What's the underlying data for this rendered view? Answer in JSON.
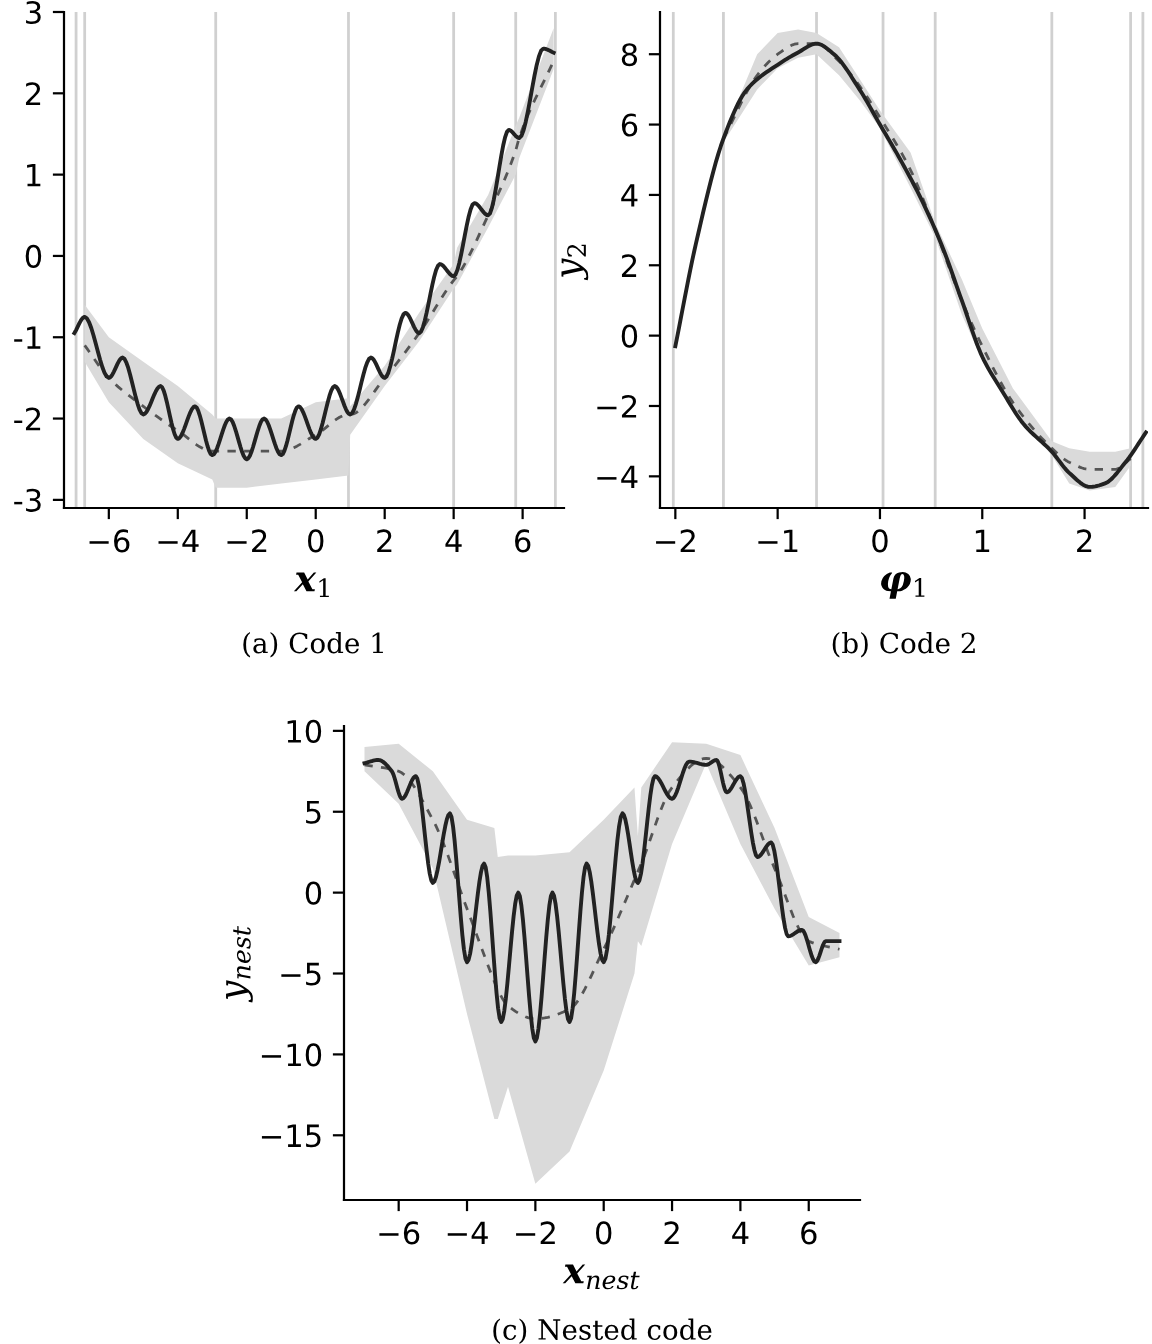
{
  "chart_data": [
    {
      "type": "line",
      "title": "(a) Code 1",
      "xlabel": "x$_{1}$",
      "xlim": [
        -7.3,
        7.2
      ],
      "ylim": [
        -3.1,
        3.0
      ],
      "xticks": [
        {
          "value": -6,
          "label": "−6"
        },
        {
          "value": -4,
          "label": "−4"
        },
        {
          "value": -2,
          "label": "−2"
        },
        0,
        2,
        4,
        6
      ],
      "yticks": [
        -3,
        -2,
        -1,
        0,
        1,
        2,
        3
      ],
      "ref_lines": [
        {
          "axis": "x",
          "value": -6.95,
          "color": "#d0d0d0"
        },
        {
          "axis": "x",
          "value": -6.7,
          "color": "#d0d0d0"
        },
        {
          "axis": "x",
          "value": -2.9,
          "color": "#d0d0d0"
        },
        {
          "axis": "x",
          "value": 0.95,
          "color": "#d0d0d0"
        },
        {
          "axis": "x",
          "value": 4.0,
          "color": "#d0d0d0"
        },
        {
          "axis": "x",
          "value": 5.8,
          "color": "#d0d0d0"
        },
        {
          "axis": "x",
          "value": 6.95,
          "color": "#d0d0d0"
        }
      ],
      "series": [
        {
          "color": "#555555",
          "line_style": "dashed",
          "x": [
            -6.7,
            -6.0,
            -5.0,
            -4.0,
            -3.0,
            -2.9,
            -2.0,
            -1.0,
            0.0,
            0.95,
            1.0,
            2.0,
            3.0,
            4.0,
            4.1,
            5.0,
            5.8,
            5.9,
            6.9
          ],
          "values": [
            -1.1,
            -1.5,
            -1.85,
            -2.15,
            -2.4,
            -2.4,
            -2.4,
            -2.4,
            -2.2,
            -1.95,
            -1.95,
            -1.5,
            -0.95,
            -0.3,
            -0.25,
            0.5,
            1.3,
            1.45,
            2.4
          ],
          "lower": [
            -1.3,
            -1.8,
            -2.25,
            -2.55,
            -2.75,
            -2.85,
            -2.85,
            -2.8,
            -2.75,
            -2.7,
            -2.2,
            -1.6,
            -1.05,
            -0.4,
            -0.35,
            0.35,
            1.0,
            1.2,
            2.3
          ],
          "upper": [
            -0.6,
            -1.0,
            -1.3,
            -1.6,
            -1.95,
            -2.0,
            -2.0,
            -2.0,
            -1.8,
            -1.75,
            -1.85,
            -1.35,
            -0.7,
            -0.1,
            0.1,
            0.75,
            1.6,
            1.7,
            2.8
          ]
        },
        {
          "color": "#222222",
          "line_style": "solid",
          "x": [
            -7.0,
            -6.7,
            -6.0,
            -5.6,
            -5.0,
            -4.5,
            -4.0,
            -3.5,
            -3.0,
            -2.5,
            -2.0,
            -1.5,
            -1.0,
            -0.5,
            0.0,
            0.55,
            1.0,
            1.6,
            2.0,
            2.6,
            3.0,
            3.6,
            4.0,
            4.6,
            5.0,
            5.6,
            5.9,
            6.6,
            6.9
          ],
          "values": [
            -0.95,
            -0.75,
            -1.5,
            -1.25,
            -1.95,
            -1.6,
            -2.25,
            -1.85,
            -2.45,
            -2.0,
            -2.5,
            -2.0,
            -2.45,
            -1.85,
            -2.25,
            -1.6,
            -1.95,
            -1.25,
            -1.5,
            -0.7,
            -0.95,
            -0.1,
            -0.25,
            0.65,
            0.5,
            1.55,
            1.45,
            2.55,
            2.5
          ]
        }
      ]
    },
    {
      "type": "line",
      "title": "(b) Code 2",
      "xlabel": "φ$_{1}$",
      "ylabel": "y$_{2}$",
      "xlim": [
        -2.15,
        2.62
      ],
      "ylim": [
        -4.9,
        9.2
      ],
      "xticks": [
        {
          "value": -2,
          "label": "−2"
        },
        {
          "value": -1,
          "label": "−1"
        },
        0,
        1,
        2
      ],
      "yticks": [
        {
          "value": -4,
          "label": "−4"
        },
        {
          "value": -2,
          "label": "−2"
        },
        0,
        2,
        4,
        6,
        8
      ],
      "ref_lines": [
        {
          "axis": "x",
          "value": -2.02,
          "color": "#d0d0d0"
        },
        {
          "axis": "x",
          "value": -1.53,
          "color": "#d0d0d0"
        },
        {
          "axis": "x",
          "value": -0.62,
          "color": "#d0d0d0"
        },
        {
          "axis": "x",
          "value": 0.03,
          "color": "#d0d0d0"
        },
        {
          "axis": "x",
          "value": 0.54,
          "color": "#d0d0d0"
        },
        {
          "axis": "x",
          "value": 1.68,
          "color": "#d0d0d0"
        },
        {
          "axis": "x",
          "value": 2.45,
          "color": "#d0d0d0"
        },
        {
          "axis": "x",
          "value": 2.57,
          "color": "#d0d0d0"
        }
      ],
      "series": [
        {
          "color": "#555555",
          "line_style": "dashed",
          "x": [
            -1.53,
            -1.2,
            -1.0,
            -0.8,
            -0.62,
            -0.4,
            -0.2,
            0.0,
            0.3,
            0.54,
            0.8,
            1.0,
            1.3,
            1.68,
            1.85,
            2.05,
            2.3,
            2.45
          ],
          "values": [
            5.6,
            7.4,
            8.0,
            8.3,
            8.3,
            7.8,
            7.1,
            6.2,
            4.7,
            3.0,
            1.0,
            -0.3,
            -1.9,
            -3.2,
            -3.6,
            -3.8,
            -3.8,
            -3.5
          ],
          "lower": [
            5.5,
            7.0,
            7.6,
            7.9,
            8.0,
            7.4,
            6.7,
            5.9,
            4.2,
            2.8,
            0.6,
            -0.7,
            -2.1,
            -3.4,
            -4.2,
            -4.4,
            -4.3,
            -3.7
          ],
          "upper": [
            5.7,
            8.0,
            8.6,
            8.7,
            8.6,
            8.2,
            7.3,
            6.4,
            5.2,
            3.2,
            1.6,
            0.2,
            -1.5,
            -3.0,
            -3.2,
            -3.3,
            -3.3,
            -3.2
          ]
        },
        {
          "color": "#222222",
          "line_style": "solid",
          "x": [
            -2.0,
            -1.8,
            -1.53,
            -1.3,
            -1.0,
            -0.8,
            -0.62,
            -0.45,
            -0.2,
            0.0,
            0.2,
            0.4,
            0.6,
            0.8,
            1.0,
            1.2,
            1.4,
            1.68,
            1.85,
            2.05,
            2.2,
            2.4,
            2.6
          ],
          "values": [
            -0.3,
            2.6,
            5.6,
            7.0,
            7.7,
            8.05,
            8.3,
            8.0,
            7.0,
            6.0,
            5.0,
            3.9,
            2.6,
            1.0,
            -0.6,
            -1.6,
            -2.5,
            -3.3,
            -3.9,
            -4.3,
            -4.2,
            -3.6,
            -2.75
          ]
        }
      ]
    },
    {
      "type": "line",
      "title": "(c) Nested code",
      "xlabel": "x$_{nest}$",
      "ylabel": "y$_{nest}$",
      "xlim": [
        -7.6,
        7.5
      ],
      "ylim": [
        -19.0,
        10.3
      ],
      "xticks": [
        {
          "value": -6,
          "label": "−6"
        },
        {
          "value": -4,
          "label": "−4"
        },
        {
          "value": -2,
          "label": "−2"
        },
        0,
        2,
        4,
        6
      ],
      "yticks": [
        {
          "value": -15,
          "label": "−15"
        },
        {
          "value": -10,
          "label": "−10"
        },
        {
          "value": -5,
          "label": "−5"
        },
        0,
        5,
        10
      ],
      "series": [
        {
          "color": "#555555",
          "line_style": "dashed",
          "x": [
            -7.0,
            -6.0,
            -5.0,
            -4.0,
            -3.2,
            -3.1,
            -2.8,
            -2.0,
            -1.0,
            0.0,
            0.9,
            1.0,
            1.1,
            2.0,
            3.0,
            4.0,
            5.0,
            6.0,
            6.9
          ],
          "values": [
            7.9,
            7.5,
            4.5,
            -1.0,
            -5.5,
            -6.0,
            -7.0,
            -7.8,
            -7.2,
            -3.5,
            0.8,
            1.3,
            1.8,
            6.5,
            8.3,
            6.5,
            1.5,
            -3.0,
            -3.5
          ],
          "lower": [
            7.5,
            5.5,
            1.5,
            -7.5,
            -14.0,
            -14.0,
            -12.0,
            -18.0,
            -16.0,
            -11.0,
            -5.0,
            -3.0,
            -3.3,
            3.0,
            8.0,
            3.0,
            -1.0,
            -4.5,
            -4.0
          ],
          "upper": [
            9.0,
            9.2,
            7.5,
            4.5,
            4.0,
            2.2,
            2.3,
            2.3,
            2.5,
            4.5,
            6.5,
            3.5,
            6.5,
            9.3,
            9.2,
            8.5,
            4.0,
            -1.5,
            -2.5
          ]
        },
        {
          "color": "#222222",
          "line_style": "solid",
          "x": [
            -7.0,
            -6.6,
            -6.2,
            -5.9,
            -5.5,
            -5.0,
            -4.5,
            -4.0,
            -3.5,
            -3.0,
            -2.5,
            -2.0,
            -1.5,
            -1.0,
            -0.5,
            0.0,
            0.55,
            1.0,
            1.5,
            2.0,
            2.5,
            3.0,
            3.3,
            3.6,
            4.0,
            4.5,
            4.9,
            5.4,
            5.8,
            6.2,
            6.5,
            6.9
          ],
          "values": [
            8.0,
            8.2,
            7.5,
            5.8,
            7.2,
            0.6,
            4.9,
            -4.3,
            1.8,
            -8.0,
            0.0,
            -9.2,
            0.0,
            -8.0,
            1.8,
            -4.3,
            4.9,
            0.6,
            7.2,
            5.8,
            8.1,
            7.9,
            8.2,
            6.2,
            7.2,
            2.2,
            3.1,
            -2.7,
            -2.3,
            -4.3,
            -3.0,
            -3.0
          ]
        }
      ]
    }
  ]
}
